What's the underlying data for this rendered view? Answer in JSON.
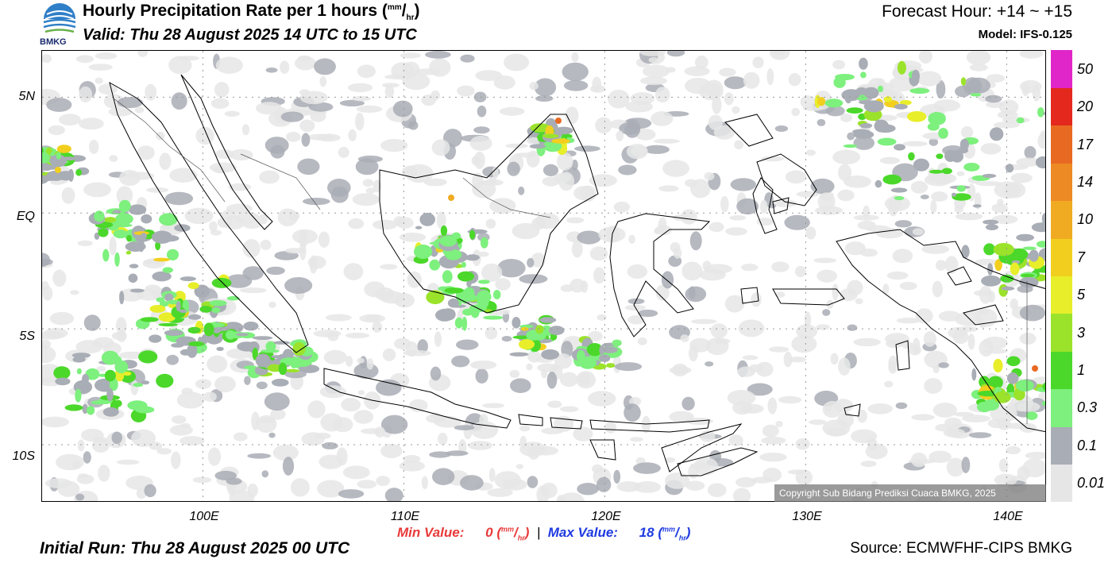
{
  "header": {
    "title_main": "Hourly Precipitation Rate per 1 hours (",
    "title_unit_sup": "mm",
    "title_unit_sub": "hr",
    "title_end": ")",
    "valid": "Valid: Thu 28 August 2025 14 UTC to 15 UTC",
    "forecast_hour": "Forecast Hour: +14 ~ +15",
    "model": "Model: IFS-0.125",
    "logo_text": "BMKG"
  },
  "map": {
    "lat_labels": [
      "5N",
      "EQ",
      "5S",
      "10S"
    ],
    "lon_labels": [
      "100E",
      "110E",
      "120E",
      "130E",
      "140E"
    ],
    "lon_range": [
      92,
      142
    ],
    "lat_range": [
      -12.5,
      7
    ],
    "copyright": "Copyright Sub Bidang Prediksi Cuaca BMKG, 2025"
  },
  "legend": {
    "colors": [
      "#e6e6e6",
      "#a9adb5",
      "#7df07d",
      "#4bd82a",
      "#9be32a",
      "#e8ee2a",
      "#f2cf1e",
      "#f0ab22",
      "#ee8a24",
      "#e86a22",
      "#e4281e",
      "#e026c8"
    ],
    "tick_labels": [
      "0.01",
      "0.1",
      "0.3",
      "1",
      "3",
      "5",
      "7",
      "10",
      "14",
      "17",
      "20",
      "50"
    ]
  },
  "footer": {
    "min_label": "Min Value:",
    "min_value": "0",
    "max_label": "Max Value:",
    "max_value": "18",
    "unit_sup": "mm",
    "unit_sub": "hr",
    "initial_run": "Initial Run: Thu 28 August 2025 00 UTC",
    "source": "Source: ECMWFHF-CIPS BMKG"
  }
}
